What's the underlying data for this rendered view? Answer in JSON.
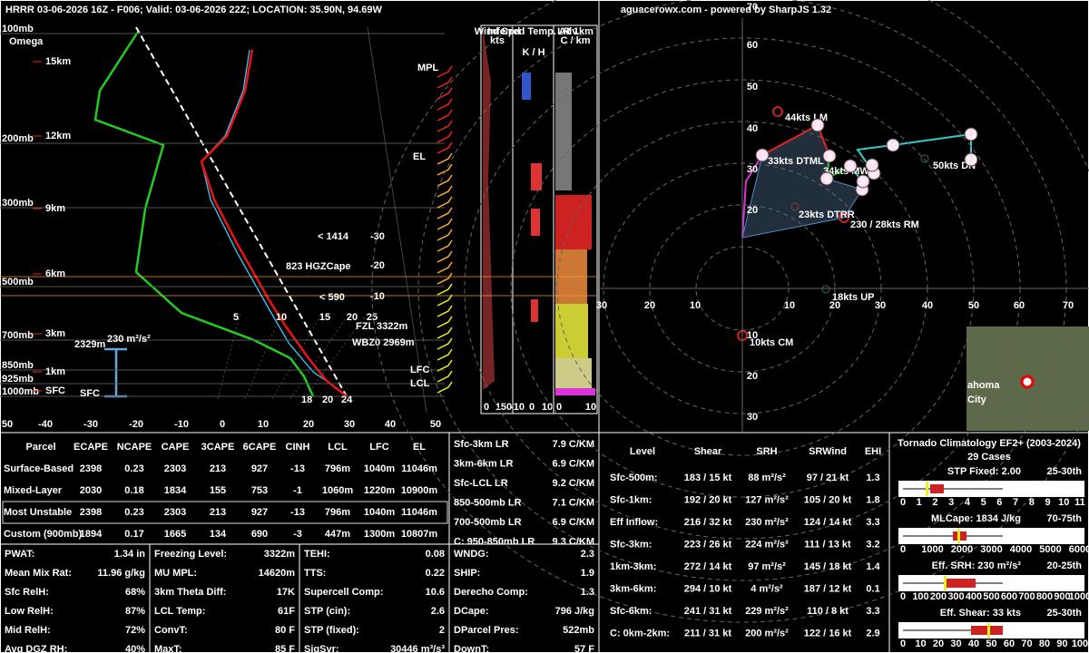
{
  "header": {
    "title": "HRRR 03-06-2026 16Z - F006;  Valid: 03-06-2026 22Z;  LOCATION: 35.90N, 94.69W",
    "credit": "aguacerowx.com - powered by SharpJS 1.32"
  },
  "skewt": {
    "omega": "Omega",
    "pressure_labels": [
      "100mb",
      "200mb",
      "300mb",
      "500mb",
      "700mb",
      "850mb",
      "925mb",
      "1000mb"
    ],
    "height_labels": [
      "15km",
      "12km",
      "9km",
      "6km",
      "3km",
      "1km",
      "SFC"
    ],
    "temp_labels": [
      "50",
      "-40",
      "-30",
      "-20",
      "-10",
      "0",
      "10",
      "20",
      "30",
      "40",
      "50"
    ],
    "mixing_labels": [
      "5",
      "10",
      "15",
      "20",
      "25"
    ],
    "annotations": [
      "MPL",
      "EL",
      "LFC",
      "LCL",
      "< 1414",
      "823 HGZCape",
      "< 590",
      "-30",
      "-20",
      "-10",
      "FZL 3322m",
      "WBZ0 2969m",
      "2329m",
      "230 m²/s²",
      "SFC",
      "18",
      "20",
      "24"
    ]
  },
  "insets": {
    "headers": [
      "Wind Spd",
      "kts",
      "Inferred Temp. Adv.",
      "K / H",
      "LR 1km",
      "C / km"
    ],
    "axis_labels": [
      "0",
      "150",
      "-10",
      "0",
      "10",
      "0",
      "10"
    ]
  },
  "hodograph": {
    "axis_labels": [
      "30",
      "20",
      "10",
      "10",
      "20",
      "30",
      "40",
      "50",
      "60",
      "70",
      "70",
      "60",
      "50",
      "40",
      "30",
      "20",
      "10",
      "20",
      "30"
    ],
    "labels": [
      "44kts LM",
      "33kts DTML",
      "34kts MW",
      "23kts DTRR",
      "230 / 28kts RM",
      "50kts DN",
      "18kts UP",
      "10kts CM"
    ],
    "points": [
      "1",
      "2",
      "3",
      "4",
      "5",
      "6",
      "7",
      "8",
      "9",
      "10",
      "11",
      "12"
    ],
    "map_label": [
      "ahoma",
      "City"
    ]
  },
  "parcel_table": {
    "columns": [
      "Parcel",
      "ECAPE",
      "NCAPE",
      "CAPE",
      "3CAPE",
      "6CAPE",
      "CINH",
      "LCL",
      "LFC",
      "EL"
    ],
    "rows": [
      [
        "Surface-Based",
        "2398",
        "0.23",
        "2303",
        "213",
        "927",
        "-13",
        "796m",
        "1040m",
        "11046m"
      ],
      [
        "Mixed-Layer",
        "2030",
        "0.18",
        "1834",
        "155",
        "753",
        "-1",
        "1060m",
        "1220m",
        "10900m"
      ],
      [
        "Most Unstable",
        "2398",
        "0.23",
        "2303",
        "213",
        "927",
        "-13",
        "796m",
        "1040m",
        "11046m"
      ],
      [
        "Custom (900mb)",
        "1894",
        "0.17",
        "1665",
        "134",
        "690",
        "-3",
        "447m",
        "1300m",
        "10807m"
      ]
    ]
  },
  "lapse_rates": [
    [
      "Sfc-3km LR",
      "7.9 C/KM"
    ],
    [
      "3km-6km LR",
      "6.9 C/KM"
    ],
    [
      "Sfc-LCL LR",
      "9.2 C/KM"
    ],
    [
      "850-500mb LR",
      "7.1 C/KM"
    ],
    [
      "700-500mb LR",
      "6.9 C/KM"
    ],
    [
      "C: 950-850mb LR",
      "9.3 C/KM"
    ]
  ],
  "indices": [
    [
      [
        "PWAT:",
        "1.34 in"
      ],
      [
        "Mean Mix Rat:",
        "11.96 g/kg"
      ],
      [
        "Sfc RelH:",
        "68%"
      ],
      [
        "Low RelH:",
        "87%"
      ],
      [
        "Mid RelH:",
        "72%"
      ],
      [
        "Avg DGZ RH:",
        "40%"
      ]
    ],
    [
      [
        "Freezing Level:",
        "3322m"
      ],
      [
        "MU MPL:",
        "14620m"
      ],
      [
        "3km Theta Diff:",
        "17K"
      ],
      [
        "LCL Temp:",
        "61F"
      ],
      [
        "ConvT:",
        "80 F"
      ],
      [
        "MaxT:",
        "85 F"
      ]
    ],
    [
      [
        "TEHI:",
        "0.08"
      ],
      [
        "TTS:",
        "0.22"
      ],
      [
        "Supercell Comp:",
        "10.6"
      ],
      [
        "STP (cin):",
        "2.6"
      ],
      [
        "STP (fixed):",
        "2"
      ],
      [
        "SigSvr:",
        "30446 m³/s³"
      ]
    ],
    [
      [
        "WNDG:",
        "2.3"
      ],
      [
        "SHIP:",
        "1.9"
      ],
      [
        "Derecho Comp:",
        "1.3"
      ],
      [
        "DCape:",
        "796 J/kg"
      ],
      [
        "DParcel Pres:",
        "522mb"
      ],
      [
        "DownT:",
        "57 F"
      ]
    ]
  ],
  "kinematics": {
    "columns": [
      "Level",
      "Shear",
      "SRH",
      "SRWind",
      "EHI"
    ],
    "rows": [
      [
        "Sfc-500m:",
        "183 / 15 kt",
        "88 m²/s²",
        "97 / 21 kt",
        "1.3"
      ],
      [
        "Sfc-1km:",
        "192 / 20 kt",
        "127 m²/s²",
        "105 / 20 kt",
        "1.8"
      ],
      [
        "Eff Inflow:",
        "216 / 32 kt",
        "230 m²/s²",
        "124 / 14 kt",
        "3.3"
      ],
      [
        "Sfc-3km:",
        "223 / 26 kt",
        "224 m²/s²",
        "111 / 13 kt",
        "3.2"
      ],
      [
        "1km-3km:",
        "272 / 14 kt",
        "97 m²/s²",
        "145 / 18 kt",
        "1.4"
      ],
      [
        "3km-6km:",
        "294 / 10 kt",
        "4 m²/s²",
        "187 / 12 kt",
        "0.1"
      ],
      [
        "Sfc-6km:",
        "241 / 31 kt",
        "229 m²/s²",
        "110 / 8 kt",
        "3.3"
      ],
      [
        "C: 0km-2km:",
        "211 / 31 kt",
        "200 m²/s²",
        "122 / 16 kt",
        "2.9"
      ]
    ]
  },
  "climatology": {
    "title": "Tornado Climatology EF2+ (2003-2024)",
    "cases": "29 Cases",
    "panels": [
      {
        "label": "STP Fixed: 2.00",
        "percentile": "25-30th",
        "ticks": [
          "0",
          "1",
          "2",
          "3",
          "4",
          "5",
          "6",
          "7",
          "8",
          "9",
          "10",
          "11"
        ]
      },
      {
        "label": "MLCape: 1834 J/kg",
        "percentile": "70-75th",
        "ticks": [
          "0",
          "1000",
          "2000",
          "3000",
          "4000",
          "5000",
          "6000"
        ]
      },
      {
        "label": "Eff. SRH: 230 m²/s²",
        "percentile": "20-25th",
        "ticks": [
          "0",
          "100",
          "200",
          "300",
          "400",
          "500",
          "600",
          "700",
          "800",
          "900",
          "1000"
        ]
      },
      {
        "label": "Eff. Shear: 33 kts",
        "percentile": "25-30th",
        "ticks": [
          "0",
          "10",
          "20",
          "30",
          "40",
          "50",
          "60",
          "70",
          "80",
          "90",
          "100"
        ]
      }
    ]
  }
}
